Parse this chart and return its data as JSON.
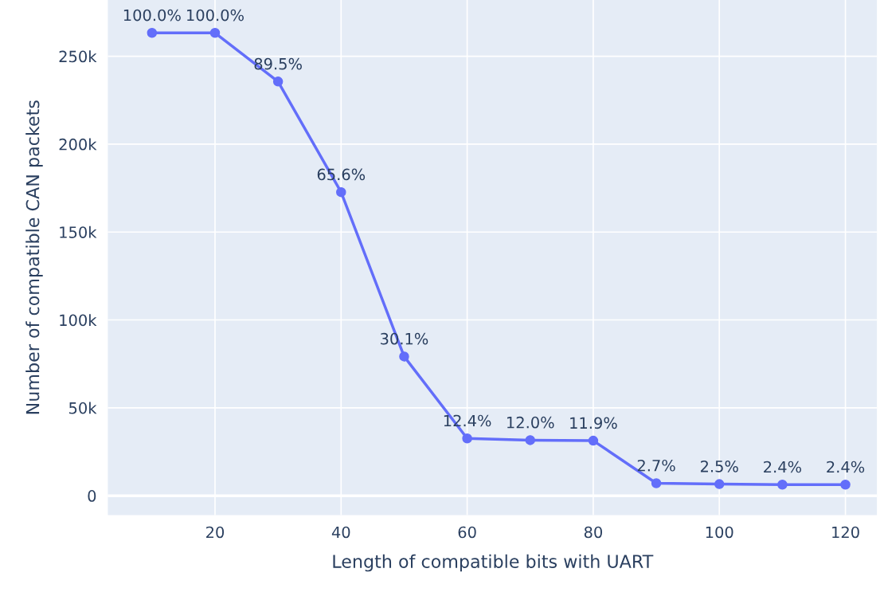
{
  "chart_data": {
    "type": "line",
    "xlabel": "Length of compatible bits with UART",
    "ylabel": "Number of compatible CAN packets",
    "x": [
      10,
      20,
      30,
      40,
      50,
      60,
      70,
      80,
      90,
      100,
      110,
      120
    ],
    "series": [
      {
        "color": "#636efa",
        "values": [
          263300,
          263300,
          235600,
          172700,
          79200,
          32600,
          31600,
          31300,
          7100,
          6600,
          6300,
          6300
        ]
      }
    ],
    "annotations": [
      {
        "text": "100.0%",
        "x": 10,
        "y": 263300
      },
      {
        "text": "100.0%",
        "x": 20,
        "y": 263300
      },
      {
        "text": "89.5%",
        "x": 30,
        "y": 235600
      },
      {
        "text": "65.6%",
        "x": 40,
        "y": 172700
      },
      {
        "text": "30.1%",
        "x": 50,
        "y": 79200
      },
      {
        "text": "12.4%",
        "x": 60,
        "y": 32600
      },
      {
        "text": "12.0%",
        "x": 70,
        "y": 31600
      },
      {
        "text": "11.9%",
        "x": 80,
        "y": 31300
      },
      {
        "text": "2.7%",
        "x": 90,
        "y": 7100
      },
      {
        "text": "2.5%",
        "x": 100,
        "y": 6600
      },
      {
        "text": "2.4%",
        "x": 110,
        "y": 6300
      },
      {
        "text": "2.4%",
        "x": 120,
        "y": 6300
      }
    ],
    "xlim": [
      3,
      125
    ],
    "ylim": [
      -11000,
      282000
    ],
    "xticks": [
      20,
      40,
      60,
      80,
      100,
      120
    ],
    "yticks": [
      0,
      {
        "value": 50000,
        "label": "50k"
      },
      {
        "value": 100000,
        "label": "100k"
      },
      {
        "value": 150000,
        "label": "150k"
      },
      {
        "value": 200000,
        "label": "200k"
      },
      {
        "value": 250000,
        "label": "250k"
      }
    ],
    "grid": true,
    "marker": "circle",
    "line_style": "solid",
    "legend": false
  }
}
